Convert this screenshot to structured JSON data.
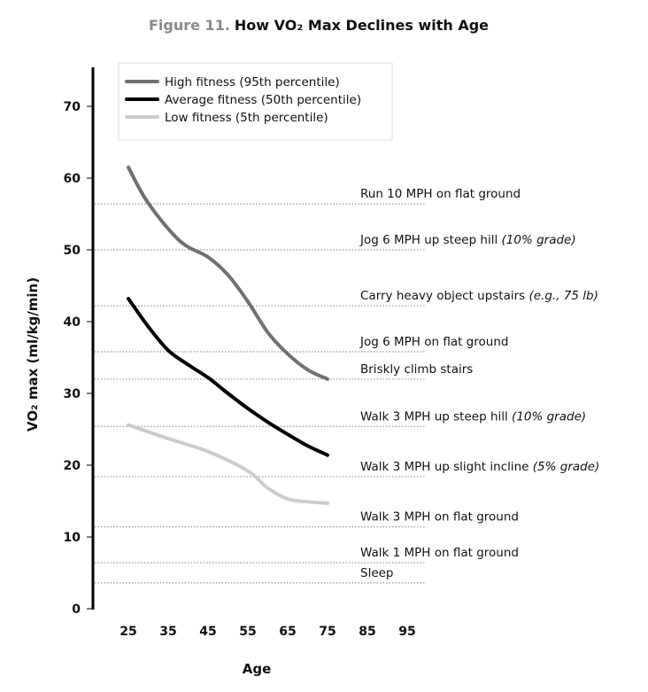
{
  "chart_data": {
    "type": "line",
    "title_prefix": "Figure 11.",
    "title": "How VO₂ Max Declines with Age",
    "xlabel": "Age",
    "ylabel": "VO₂ max (ml/kg/min)",
    "xlim": [
      15,
      100
    ],
    "ylim": [
      0,
      72
    ],
    "x_ticks": [
      25,
      35,
      45,
      55,
      65,
      75,
      85,
      95
    ],
    "y_ticks": [
      0,
      10,
      20,
      30,
      40,
      50,
      60,
      70
    ],
    "legend_position": "top-left",
    "series": [
      {
        "name": "High fitness (95th percentile)",
        "color": "#707070",
        "x": [
          25,
          30,
          38,
          45,
          50,
          55,
          60,
          65,
          70,
          75
        ],
        "y": [
          61.5,
          56.5,
          51.2,
          49.0,
          46.5,
          42.8,
          38.5,
          35.5,
          33.3,
          32.0
        ]
      },
      {
        "name": "Average fitness (50th percentile)",
        "color": "#000000",
        "x": [
          25,
          30,
          35,
          40,
          45,
          50,
          55,
          60,
          65,
          70,
          75
        ],
        "y": [
          43.2,
          39.3,
          36.0,
          34.0,
          32.2,
          30.0,
          27.9,
          26.0,
          24.3,
          22.7,
          21.4
        ]
      },
      {
        "name": "Low fitness (5th percentile)",
        "color": "#cccccc",
        "x": [
          25,
          35,
          45,
          55,
          60,
          65,
          70,
          75
        ],
        "y": [
          25.6,
          23.7,
          21.9,
          19.2,
          16.8,
          15.3,
          14.9,
          14.7
        ]
      }
    ],
    "reference_lines": [
      {
        "y": 56.4,
        "label": "Run 10 MPH on flat ground",
        "note": ""
      },
      {
        "y": 50.0,
        "label": "Jog 6 MPH up steep hill ",
        "note": "(10% grade)"
      },
      {
        "y": 42.2,
        "label": "Carry heavy object upstairs ",
        "note": "(e.g., 75 lb)"
      },
      {
        "y": 35.8,
        "label": "Jog 6 MPH on flat ground",
        "note": ""
      },
      {
        "y": 32.0,
        "label": "Briskly climb stairs",
        "note": ""
      },
      {
        "y": 25.4,
        "label": "Walk 3 MPH up steep hill ",
        "note": "(10% grade)"
      },
      {
        "y": 18.4,
        "label": "Walk 3 MPH up slight incline ",
        "note": "(5% grade)"
      },
      {
        "y": 11.4,
        "label": "Walk 3 MPH on flat ground",
        "note": ""
      },
      {
        "y": 6.4,
        "label": "Walk 1 MPH on flat ground",
        "note": ""
      },
      {
        "y": 3.6,
        "label": "Sleep",
        "note": ""
      }
    ]
  }
}
